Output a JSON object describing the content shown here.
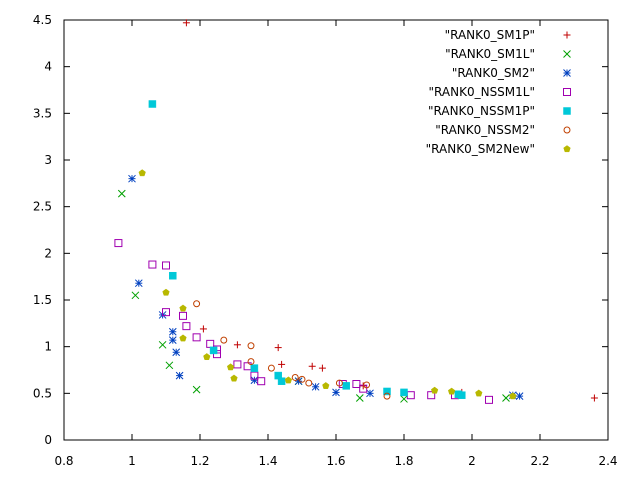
{
  "chart_data": {
    "type": "scatter",
    "title": "",
    "xlabel": "",
    "ylabel": "",
    "xlim": [
      0.8,
      2.4
    ],
    "ylim": [
      0,
      4.5
    ],
    "x_ticks": [
      0.8,
      1,
      1.2,
      1.4,
      1.6,
      1.8,
      2,
      2.2,
      2.4
    ],
    "y_ticks": [
      0,
      0.5,
      1,
      1.5,
      2,
      2.5,
      3,
      3.5,
      4,
      4.5
    ],
    "x_tick_labels": [
      "0.8",
      "1",
      "1.2",
      "1.4",
      "1.6",
      "1.8",
      "2",
      "2.2",
      "2.4"
    ],
    "y_tick_labels": [
      "0",
      "0.5",
      "1",
      "1.5",
      "2",
      "2.5",
      "3",
      "3.5",
      "4",
      "4.5"
    ],
    "grid": false,
    "legend_position": "top-right",
    "series": [
      {
        "name": "\"RANK0_SM1P\"",
        "marker": "plus",
        "color": "#c00000",
        "points": [
          [
            1.16,
            4.47
          ],
          [
            1.21,
            1.19
          ],
          [
            1.31,
            1.02
          ],
          [
            1.43,
            0.99
          ],
          [
            1.44,
            0.81
          ],
          [
            1.53,
            0.79
          ],
          [
            1.56,
            0.77
          ],
          [
            1.68,
            0.58
          ],
          [
            1.97,
            0.51
          ],
          [
            2.36,
            0.45
          ]
        ]
      },
      {
        "name": "\"RANK0_SM1L\"",
        "marker": "cross",
        "color": "#00a000",
        "points": [
          [
            0.97,
            2.64
          ],
          [
            1.01,
            1.55
          ],
          [
            1.09,
            1.02
          ],
          [
            1.11,
            0.8
          ],
          [
            1.19,
            0.54
          ],
          [
            1.49,
            0.63
          ],
          [
            1.67,
            0.45
          ],
          [
            1.8,
            0.44
          ],
          [
            2.1,
            0.45
          ]
        ]
      },
      {
        "name": "\"RANK0_SM2\"",
        "marker": "star",
        "color": "#0040c0",
        "points": [
          [
            1.0,
            2.8
          ],
          [
            1.02,
            1.68
          ],
          [
            1.09,
            1.34
          ],
          [
            1.12,
            1.16
          ],
          [
            1.12,
            1.07
          ],
          [
            1.13,
            0.94
          ],
          [
            1.14,
            0.69
          ],
          [
            1.36,
            0.64
          ],
          [
            1.49,
            0.63
          ],
          [
            1.54,
            0.57
          ],
          [
            1.6,
            0.51
          ],
          [
            1.7,
            0.5
          ],
          [
            2.12,
            0.48
          ],
          [
            2.14,
            0.47
          ]
        ]
      },
      {
        "name": "\"RANK0_NSSM1L\"",
        "marker": "square-open",
        "color": "#a000b0",
        "points": [
          [
            0.96,
            2.11
          ],
          [
            1.06,
            1.88
          ],
          [
            1.1,
            1.87
          ],
          [
            1.1,
            1.37
          ],
          [
            1.15,
            1.33
          ],
          [
            1.16,
            1.22
          ],
          [
            1.19,
            1.1
          ],
          [
            1.23,
            1.03
          ],
          [
            1.25,
            0.97
          ],
          [
            1.25,
            0.92
          ],
          [
            1.31,
            0.81
          ],
          [
            1.34,
            0.79
          ],
          [
            1.36,
            0.69
          ],
          [
            1.38,
            0.63
          ],
          [
            1.62,
            0.6
          ],
          [
            1.66,
            0.6
          ],
          [
            1.68,
            0.55
          ],
          [
            1.82,
            0.48
          ],
          [
            1.88,
            0.48
          ],
          [
            1.95,
            0.48
          ],
          [
            2.05,
            0.43
          ]
        ]
      },
      {
        "name": "\"RANK0_NSSM1P\"",
        "marker": "square-filled",
        "color": "#00c8d8",
        "points": [
          [
            1.06,
            3.6
          ],
          [
            1.12,
            1.76
          ],
          [
            1.24,
            0.96
          ],
          [
            1.36,
            0.77
          ],
          [
            1.43,
            0.69
          ],
          [
            1.44,
            0.63
          ],
          [
            1.63,
            0.58
          ],
          [
            1.75,
            0.52
          ],
          [
            1.8,
            0.51
          ],
          [
            1.96,
            0.49
          ],
          [
            1.97,
            0.48
          ]
        ]
      },
      {
        "name": "\"RANK0_NSSM2\"",
        "marker": "circle-open",
        "color": "#c04000",
        "points": [
          [
            1.19,
            1.46
          ],
          [
            1.27,
            1.07
          ],
          [
            1.35,
            1.01
          ],
          [
            1.35,
            0.84
          ],
          [
            1.41,
            0.77
          ],
          [
            1.48,
            0.67
          ],
          [
            1.5,
            0.65
          ],
          [
            1.52,
            0.61
          ],
          [
            1.61,
            0.61
          ],
          [
            1.69,
            0.59
          ],
          [
            1.75,
            0.47
          ]
        ]
      },
      {
        "name": "\"RANK0_SM2New\"",
        "marker": "pentagon-filled",
        "color": "#b8b800",
        "points": [
          [
            1.03,
            2.86
          ],
          [
            1.1,
            1.58
          ],
          [
            1.15,
            1.41
          ],
          [
            1.15,
            1.09
          ],
          [
            1.22,
            0.89
          ],
          [
            1.29,
            0.78
          ],
          [
            1.3,
            0.66
          ],
          [
            1.46,
            0.64
          ],
          [
            1.57,
            0.58
          ],
          [
            1.89,
            0.53
          ],
          [
            1.94,
            0.52
          ],
          [
            2.02,
            0.5
          ],
          [
            2.12,
            0.47
          ]
        ]
      }
    ]
  }
}
